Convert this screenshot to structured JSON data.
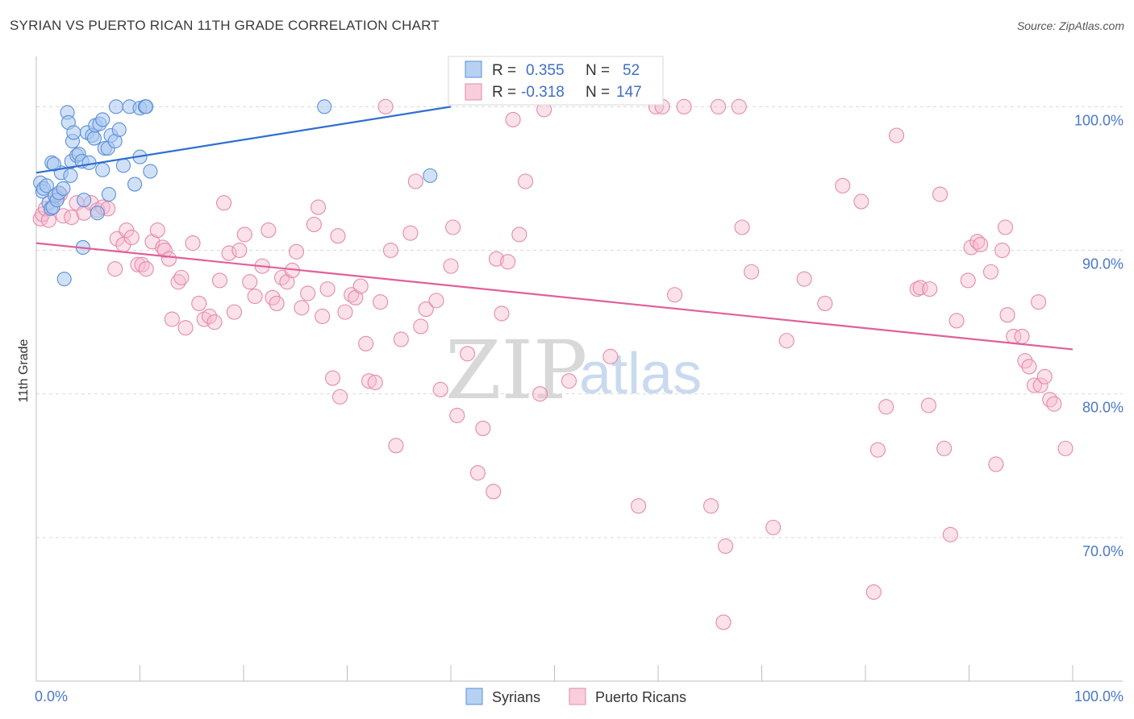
{
  "title": "SYRIAN VS PUERTO RICAN 11TH GRADE CORRELATION CHART",
  "source": "Source: ZipAtlas.com",
  "watermark": {
    "zip": "ZIP",
    "atlas": "atlas"
  },
  "colors": {
    "syrians_fill": "#a9c9f0",
    "syrians_stroke": "#5b8fd8",
    "syrians_line": "#2f6fd0",
    "pr_fill": "#f7bdd0",
    "pr_stroke": "#e58aaa",
    "pr_line": "#e0609a",
    "grid": "#d9d9d9",
    "tick_text": "#4a78c8"
  },
  "stats": {
    "syrians": {
      "r_label": "R =",
      "r_value": "0.355",
      "n_label": "N =",
      "n_value": "52"
    },
    "puerto_ricans": {
      "r_label": "R =",
      "r_value": "-0.318",
      "n_label": "N =",
      "n_value": "147"
    }
  },
  "chart_data": {
    "type": "scatter",
    "title": "SYRIAN VS PUERTO RICAN 11TH GRADE CORRELATION CHART",
    "xlabel": "",
    "ylabel": "11th Grade",
    "xlim": [
      0,
      100
    ],
    "ylim": [
      60,
      103.5
    ],
    "x_tick_labels": [
      "0.0%",
      "100.0%"
    ],
    "y_ticks": [
      70,
      80,
      90,
      100
    ],
    "y_tick_labels": [
      "70.0%",
      "80.0%",
      "90.0%",
      "100.0%"
    ],
    "grid": true,
    "legend_position": "bottom-center",
    "series": [
      {
        "name": "Syrians",
        "r": 0.355,
        "n": 52,
        "trend": {
          "x": [
            0,
            40
          ],
          "y": [
            95.4,
            100.0
          ]
        },
        "points": [
          [
            0.4,
            94.7
          ],
          [
            0.6,
            94.1
          ],
          [
            0.7,
            94.3
          ],
          [
            1.0,
            94.5
          ],
          [
            1.2,
            93.3
          ],
          [
            1.4,
            92.9
          ],
          [
            1.6,
            93.0
          ],
          [
            1.8,
            93.8
          ],
          [
            2.0,
            93.5
          ],
          [
            2.2,
            94.0
          ],
          [
            2.6,
            94.3
          ],
          [
            1.5,
            96.1
          ],
          [
            2.4,
            95.4
          ],
          [
            3.0,
            99.6
          ],
          [
            3.1,
            98.9
          ],
          [
            3.4,
            96.2
          ],
          [
            3.5,
            97.6
          ],
          [
            3.6,
            98.2
          ],
          [
            3.9,
            96.6
          ],
          [
            4.1,
            96.7
          ],
          [
            4.4,
            96.2
          ],
          [
            4.6,
            93.5
          ],
          [
            4.9,
            98.2
          ],
          [
            5.1,
            96.1
          ],
          [
            5.4,
            98.0
          ],
          [
            5.6,
            97.8
          ],
          [
            5.7,
            98.7
          ],
          [
            6.1,
            98.8
          ],
          [
            6.4,
            99.1
          ],
          [
            6.6,
            97.1
          ],
          [
            6.9,
            97.1
          ],
          [
            7.2,
            98.0
          ],
          [
            7.6,
            97.6
          ],
          [
            8.0,
            98.4
          ],
          [
            8.4,
            95.9
          ],
          [
            7.7,
            100.0
          ],
          [
            9.0,
            100.0
          ],
          [
            10.0,
            99.9
          ],
          [
            10.5,
            100.0
          ],
          [
            10.6,
            100.0
          ],
          [
            9.5,
            94.6
          ],
          [
            10.0,
            96.5
          ],
          [
            11.0,
            95.5
          ],
          [
            7.0,
            93.9
          ],
          [
            6.4,
            95.6
          ],
          [
            5.9,
            92.6
          ],
          [
            4.5,
            90.2
          ],
          [
            2.7,
            88.0
          ],
          [
            27.8,
            100.0
          ],
          [
            38.0,
            95.2
          ],
          [
            1.7,
            96.0
          ],
          [
            3.3,
            95.2
          ]
        ]
      },
      {
        "name": "Puerto Ricans",
        "r": -0.318,
        "n": 147,
        "trend": {
          "x": [
            0,
            100
          ],
          "y": [
            90.5,
            83.1
          ]
        },
        "points": [
          [
            0.4,
            92.2
          ],
          [
            0.6,
            92.5
          ],
          [
            0.9,
            92.9
          ],
          [
            1.2,
            92.1
          ],
          [
            1.5,
            93.0
          ],
          [
            2.0,
            93.7
          ],
          [
            2.3,
            93.9
          ],
          [
            2.6,
            92.4
          ],
          [
            3.4,
            92.3
          ],
          [
            3.9,
            93.3
          ],
          [
            4.6,
            92.6
          ],
          [
            5.3,
            93.3
          ],
          [
            5.9,
            92.8
          ],
          [
            6.4,
            93.0
          ],
          [
            6.9,
            92.9
          ],
          [
            7.6,
            88.7
          ],
          [
            7.8,
            90.8
          ],
          [
            8.4,
            90.4
          ],
          [
            8.7,
            91.4
          ],
          [
            9.2,
            90.9
          ],
          [
            9.8,
            89.0
          ],
          [
            10.2,
            89.0
          ],
          [
            10.6,
            88.7
          ],
          [
            11.2,
            90.6
          ],
          [
            11.7,
            91.4
          ],
          [
            12.2,
            90.2
          ],
          [
            12.4,
            90.0
          ],
          [
            12.8,
            89.4
          ],
          [
            13.1,
            85.2
          ],
          [
            13.7,
            87.8
          ],
          [
            14.0,
            88.1
          ],
          [
            14.4,
            84.6
          ],
          [
            15.1,
            90.5
          ],
          [
            15.7,
            86.3
          ],
          [
            16.2,
            85.2
          ],
          [
            16.7,
            85.4
          ],
          [
            17.2,
            85.0
          ],
          [
            17.7,
            87.9
          ],
          [
            18.1,
            93.3
          ],
          [
            18.6,
            89.8
          ],
          [
            19.1,
            85.7
          ],
          [
            19.6,
            90.0
          ],
          [
            20.1,
            91.1
          ],
          [
            20.6,
            87.8
          ],
          [
            21.1,
            86.8
          ],
          [
            21.8,
            88.9
          ],
          [
            22.4,
            91.4
          ],
          [
            22.8,
            86.7
          ],
          [
            23.2,
            86.3
          ],
          [
            23.7,
            88.1
          ],
          [
            24.2,
            87.8
          ],
          [
            24.7,
            88.6
          ],
          [
            25.1,
            89.9
          ],
          [
            25.6,
            86.0
          ],
          [
            26.2,
            87.0
          ],
          [
            26.8,
            91.8
          ],
          [
            27.2,
            93.0
          ],
          [
            27.6,
            85.4
          ],
          [
            28.1,
            87.3
          ],
          [
            28.6,
            81.1
          ],
          [
            29.1,
            91.0
          ],
          [
            29.3,
            79.8
          ],
          [
            29.8,
            85.7
          ],
          [
            30.4,
            86.9
          ],
          [
            30.8,
            86.7
          ],
          [
            31.3,
            87.5
          ],
          [
            31.8,
            83.5
          ],
          [
            32.1,
            80.9
          ],
          [
            32.7,
            80.8
          ],
          [
            33.2,
            86.4
          ],
          [
            33.7,
            100.0
          ],
          [
            34.2,
            90.0
          ],
          [
            34.7,
            76.4
          ],
          [
            35.2,
            83.8
          ],
          [
            36.1,
            91.2
          ],
          [
            36.6,
            94.8
          ],
          [
            37.1,
            84.7
          ],
          [
            37.6,
            85.9
          ],
          [
            38.6,
            86.5
          ],
          [
            39.0,
            80.3
          ],
          [
            40.0,
            88.9
          ],
          [
            40.2,
            91.6
          ],
          [
            40.6,
            78.5
          ],
          [
            41.6,
            82.8
          ],
          [
            42.6,
            74.5
          ],
          [
            43.1,
            77.6
          ],
          [
            44.1,
            73.2
          ],
          [
            44.4,
            89.4
          ],
          [
            44.9,
            85.6
          ],
          [
            45.5,
            89.2
          ],
          [
            46.0,
            99.1
          ],
          [
            46.6,
            91.1
          ],
          [
            47.2,
            94.8
          ],
          [
            48.6,
            80.0
          ],
          [
            49.0,
            99.8
          ],
          [
            51.4,
            80.9
          ],
          [
            55.4,
            82.6
          ],
          [
            58.1,
            72.2
          ],
          [
            59.8,
            100.0
          ],
          [
            60.4,
            100.0
          ],
          [
            61.6,
            86.9
          ],
          [
            62.5,
            100.0
          ],
          [
            65.1,
            72.2
          ],
          [
            65.8,
            100.0
          ],
          [
            66.5,
            69.4
          ],
          [
            66.3,
            64.1
          ],
          [
            67.8,
            100.0
          ],
          [
            68.1,
            91.6
          ],
          [
            69.0,
            88.5
          ],
          [
            71.1,
            70.7
          ],
          [
            72.4,
            83.7
          ],
          [
            74.1,
            88.0
          ],
          [
            76.1,
            86.3
          ],
          [
            77.8,
            94.5
          ],
          [
            79.6,
            93.4
          ],
          [
            80.8,
            66.2
          ],
          [
            81.2,
            76.1
          ],
          [
            82.0,
            79.1
          ],
          [
            83.0,
            98.0
          ],
          [
            85.0,
            87.3
          ],
          [
            85.3,
            87.4
          ],
          [
            86.1,
            79.2
          ],
          [
            87.2,
            93.9
          ],
          [
            87.6,
            76.2
          ],
          [
            88.2,
            70.2
          ],
          [
            88.8,
            85.1
          ],
          [
            89.9,
            87.9
          ],
          [
            90.2,
            90.2
          ],
          [
            90.8,
            90.6
          ],
          [
            91.1,
            90.4
          ],
          [
            92.1,
            88.5
          ],
          [
            92.6,
            75.1
          ],
          [
            93.2,
            90.0
          ],
          [
            93.5,
            91.6
          ],
          [
            93.7,
            85.5
          ],
          [
            94.3,
            84.0
          ],
          [
            95.1,
            84.0
          ],
          [
            95.4,
            82.3
          ],
          [
            95.8,
            81.9
          ],
          [
            96.3,
            80.6
          ],
          [
            96.7,
            86.4
          ],
          [
            96.9,
            80.6
          ],
          [
            97.3,
            81.2
          ],
          [
            97.8,
            79.6
          ],
          [
            98.2,
            79.3
          ],
          [
            99.3,
            76.2
          ],
          [
            86.2,
            87.3
          ]
        ]
      }
    ]
  },
  "legend": {
    "items": [
      "Syrians",
      "Puerto Ricans"
    ]
  }
}
